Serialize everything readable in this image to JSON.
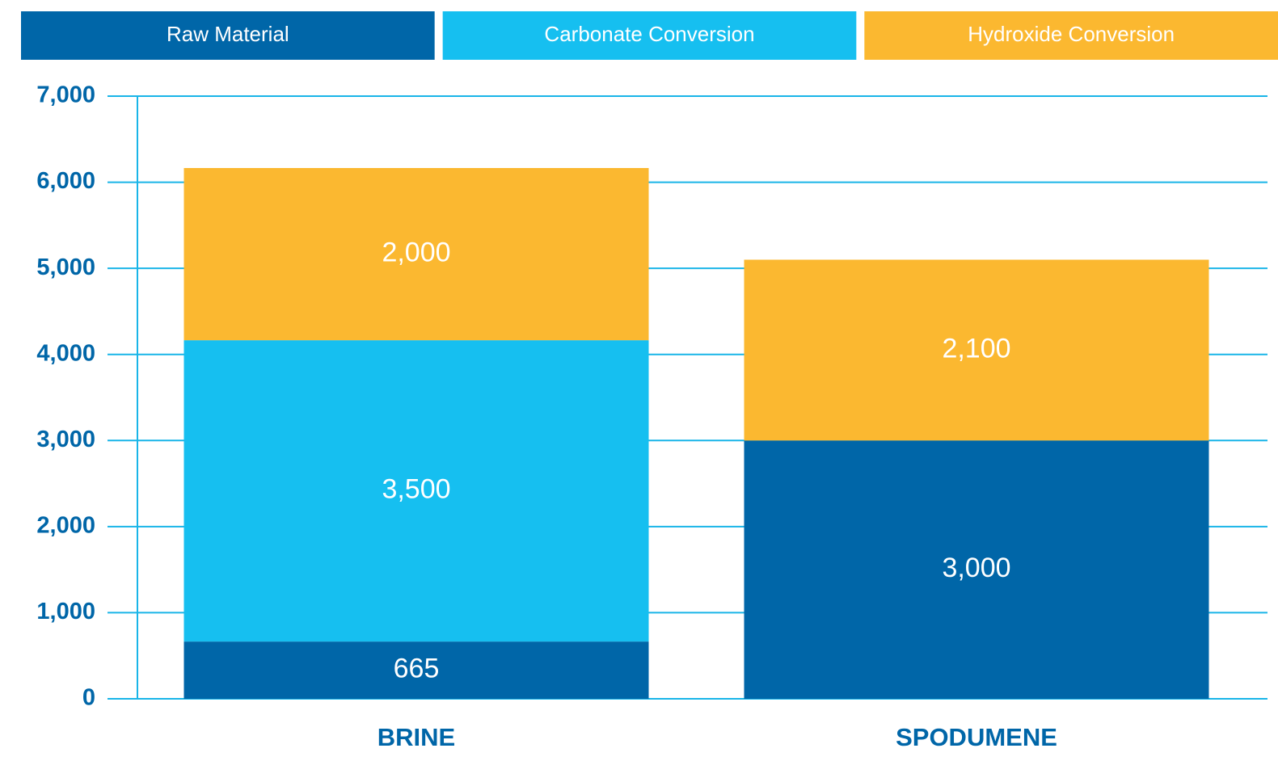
{
  "chart_data": {
    "type": "stacked_bar",
    "categories": [
      "BRINE",
      "SPODUMENE"
    ],
    "series": [
      {
        "name": "Raw Material",
        "color": "#0066a8",
        "values": [
          665,
          3000
        ],
        "value_labels": [
          "665",
          "3,000"
        ]
      },
      {
        "name": "Carbonate Conversion",
        "color": "#16bff0",
        "values": [
          3500,
          null
        ],
        "value_labels": [
          "3,500",
          null
        ]
      },
      {
        "name": "Hydroxide Conversion",
        "color": "#fbb830",
        "values": [
          2000,
          2100
        ],
        "value_labels": [
          "2,000",
          "2,100"
        ]
      }
    ],
    "ylim": [
      0,
      7000
    ],
    "yticks": [
      0,
      {
        "value": 1000,
        "label": "1,000"
      },
      {
        "value": 2000,
        "label": "2,000"
      },
      {
        "value": 3000,
        "label": "3,000"
      },
      {
        "value": 4000,
        "label": "4,000"
      },
      {
        "value": 5000,
        "label": "5,000"
      },
      {
        "value": 6000,
        "label": "6,000"
      },
      {
        "value": 7000,
        "label": "7,000"
      }
    ],
    "grid": true,
    "legend": "top"
  }
}
